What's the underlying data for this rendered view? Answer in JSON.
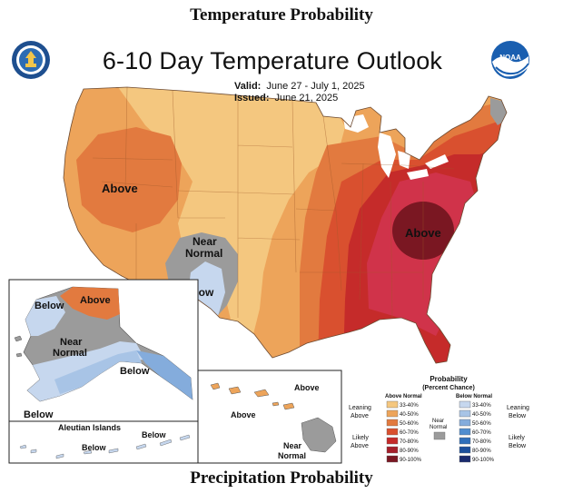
{
  "headings": {
    "top": "Temperature Probability",
    "bottom": "Precipitation Probability"
  },
  "map": {
    "title": "6-10 Day Temperature Outlook",
    "valid_label": "Valid:",
    "valid_dates": "June 27 - July 1, 2025",
    "issued_label": "Issued:",
    "issued_date": "June 21, 2025",
    "labels": {
      "west_above": "Above",
      "southwest_near": "Near",
      "southwest_normal": "Normal",
      "southwest_below": "Below",
      "east_above": "Above",
      "ak_below_nw": "Below",
      "ak_above": "Above",
      "ak_near": "Near",
      "ak_normal": "Normal",
      "ak_below_se": "Below",
      "ak_below_sw": "Below",
      "aleutian_title": "Aleutian Islands",
      "aleutian_below_w": "Below",
      "aleutian_below_e": "Below",
      "hi_above_w": "Above",
      "hi_above_n": "Above",
      "hi_near": "Near",
      "hi_normal": "Normal"
    }
  },
  "legend": {
    "title": "Probability",
    "subtitle": "(Percent Chance)",
    "above_header": "Above Normal",
    "below_header": "Below Normal",
    "near_label_1": "Near",
    "near_label_2": "Normal",
    "leaning_above_1": "Leaning",
    "leaning_above_2": "Above",
    "likely_above_1": "Likely",
    "likely_above_2": "Above",
    "leaning_below_1": "Leaning",
    "leaning_below_2": "Below",
    "likely_below_1": "Likely",
    "likely_below_2": "Below",
    "ranges": [
      "33-40%",
      "40-50%",
      "50-60%",
      "60-70%",
      "70-80%",
      "80-90%",
      "90-100%"
    ],
    "above_colors": [
      "#f4c77f",
      "#eda45a",
      "#e27a3f",
      "#d9502f",
      "#c52b2a",
      "#a51f2a",
      "#7a1722"
    ],
    "below_colors": [
      "#c6d7ee",
      "#a8c4e6",
      "#84acdc",
      "#4f8dcf",
      "#2f6fba",
      "#1c4f9c",
      "#1a2b6e"
    ],
    "near_color": "#9b9b9b"
  }
}
